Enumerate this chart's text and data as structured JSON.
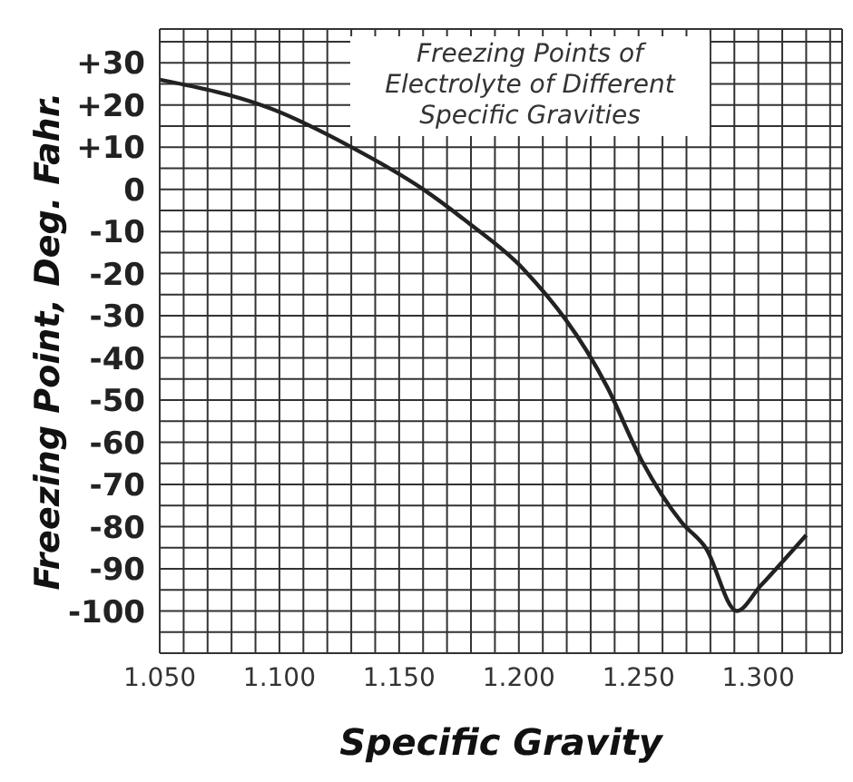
{
  "chart_data": {
    "type": "line",
    "title": "Freezing Points of Electrolyte of Different Specific Gravities",
    "xlabel": "Specific Gravity",
    "ylabel": "Freezing Point, Deg. Fahr.",
    "x": [
      1.05,
      1.097,
      1.13,
      1.16,
      1.179,
      1.202,
      1.237,
      1.251,
      1.268,
      1.278,
      1.291,
      1.301,
      1.32
    ],
    "series": [
      {
        "color": "#222222",
        "values": [
          26,
          19,
          10,
          0,
          -8,
          -19,
          -47,
          -64,
          -79,
          -85,
          -100,
          -94,
          -82
        ]
      }
    ],
    "xlim": [
      1.05,
      1.335
    ],
    "xticks": [
      {
        "value": 1.05,
        "label": "1.050"
      },
      {
        "value": 1.06,
        "label": null
      },
      {
        "value": 1.07,
        "label": null
      },
      {
        "value": 1.08,
        "label": null
      },
      {
        "value": 1.09,
        "label": null
      },
      {
        "value": 1.1,
        "label": "1.100"
      },
      {
        "value": 1.11,
        "label": null
      },
      {
        "value": 1.12,
        "label": null
      },
      {
        "value": 1.13,
        "label": null
      },
      {
        "value": 1.14,
        "label": null
      },
      {
        "value": 1.15,
        "label": "1.150"
      },
      {
        "value": 1.16,
        "label": null
      },
      {
        "value": 1.17,
        "label": null
      },
      {
        "value": 1.18,
        "label": null
      },
      {
        "value": 1.19,
        "label": null
      },
      {
        "value": 1.2,
        "label": "1.200"
      },
      {
        "value": 1.21,
        "label": null
      },
      {
        "value": 1.22,
        "label": null
      },
      {
        "value": 1.23,
        "label": null
      },
      {
        "value": 1.24,
        "label": null
      },
      {
        "value": 1.25,
        "label": "1.250"
      },
      {
        "value": 1.26,
        "label": null
      },
      {
        "value": 1.27,
        "label": null
      },
      {
        "value": 1.28,
        "label": null
      },
      {
        "value": 1.29,
        "label": null
      },
      {
        "value": 1.3,
        "label": "1.300"
      },
      {
        "value": 1.31,
        "label": null
      },
      {
        "value": 1.32,
        "label": null
      },
      {
        "value": 1.33,
        "label": null
      }
    ],
    "ylim": [
      -110,
      38
    ],
    "yticks": [
      {
        "value": -110,
        "label": null
      },
      {
        "value": -105,
        "label": null
      },
      -100,
      {
        "value": -95,
        "label": null
      },
      -90,
      {
        "value": -85,
        "label": null
      },
      -80,
      {
        "value": -75,
        "label": null
      },
      -70,
      {
        "value": -65,
        "label": null
      },
      -60,
      {
        "value": -55,
        "label": null
      },
      -50,
      {
        "value": -45,
        "label": null
      },
      -40,
      {
        "value": -35,
        "label": null
      },
      -30,
      {
        "value": -25,
        "label": null
      },
      -20,
      {
        "value": -15,
        "label": null
      },
      -10,
      {
        "value": -5,
        "label": null
      },
      0,
      {
        "value": 5,
        "label": null
      },
      {
        "value": 10,
        "label": "+10"
      },
      {
        "value": 15,
        "label": null
      },
      {
        "value": 20,
        "label": "+20"
      },
      {
        "value": 25,
        "label": null
      },
      {
        "value": 30,
        "label": "+30"
      },
      {
        "value": 35,
        "label": null
      }
    ],
    "grid": true,
    "marker": "none",
    "line_style": "solid"
  }
}
